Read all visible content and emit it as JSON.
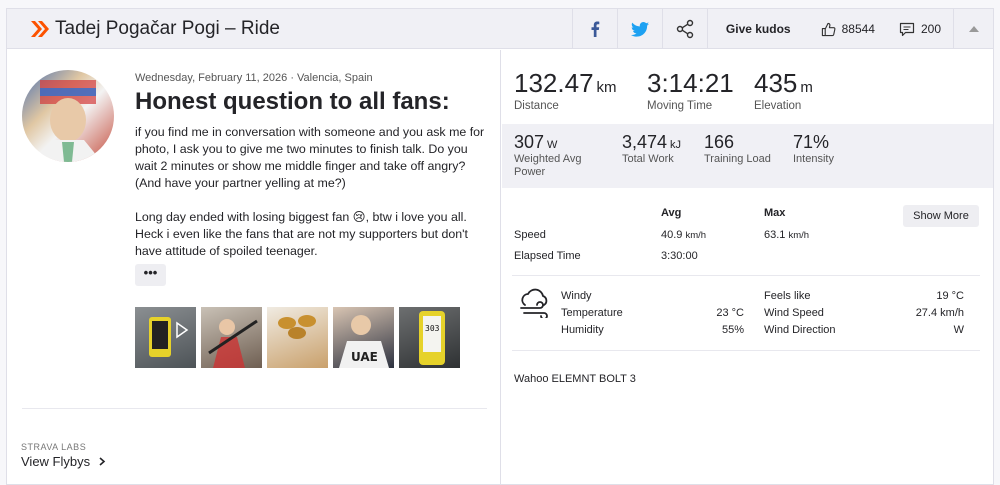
{
  "header": {
    "title": "Tadej Pogačar Pogi – Ride",
    "give_kudos": "Give kudos",
    "kudos_count": "88544",
    "comment_count": "200"
  },
  "post": {
    "date_location": "Wednesday, February 11, 2026 · Valencia, Spain",
    "title": "Honest question to all fans:",
    "paragraph1": "if you find me in conversation with someone and you ask me for photo, I ask you to give me two minutes to finish talk. Do you wait 2 minutes or show me middle finger and take off angry? (And have your partner yelling at me?)",
    "paragraph2": "Long day ended with losing biggest fan 😢, btw i love you all. Heck i even like the fans that are not my supporters but don't have attitude of spoiled teenager.",
    "more": "•••"
  },
  "labs": {
    "label": "STRAVA LABS",
    "link": "View Flybys"
  },
  "stats": {
    "distance": {
      "value": "132.47",
      "unit": "km",
      "label": "Distance"
    },
    "moving_time": {
      "value": "3:14:21",
      "label": "Moving Time"
    },
    "elevation": {
      "value": "435",
      "unit": "m",
      "label": "Elevation"
    },
    "weighted_power": {
      "value": "307",
      "unit": "W",
      "label": "Weighted Avg Power"
    },
    "total_work": {
      "value": "3,474",
      "unit": "kJ",
      "label": "Total Work"
    },
    "training_load": {
      "value": "166",
      "label": "Training Load"
    },
    "intensity": {
      "value": "71%",
      "label": "Intensity"
    }
  },
  "table": {
    "avg_header": "Avg",
    "max_header": "Max",
    "show_more": "Show More",
    "speed_label": "Speed",
    "speed_avg": "40.9",
    "speed_avg_unit": "km/h",
    "speed_max": "63.1",
    "speed_max_unit": "km/h",
    "elapsed_label": "Elapsed Time",
    "elapsed_value": "3:30:00"
  },
  "weather": {
    "condition": "Windy",
    "temperature_label": "Temperature",
    "temperature_value": "23 °C",
    "humidity_label": "Humidity",
    "humidity_value": "55%",
    "feels_like_label": "Feels like",
    "feels_like_value": "19 °C",
    "wind_speed_label": "Wind Speed",
    "wind_speed_value": "27.4 km/h",
    "wind_direction_label": "Wind Direction",
    "wind_direction_value": "W"
  },
  "device": "Wahoo ELEMNT BOLT 3",
  "colors": {
    "brand": "#fc5200",
    "facebook": "#3b5998",
    "twitter": "#1da1f2"
  }
}
